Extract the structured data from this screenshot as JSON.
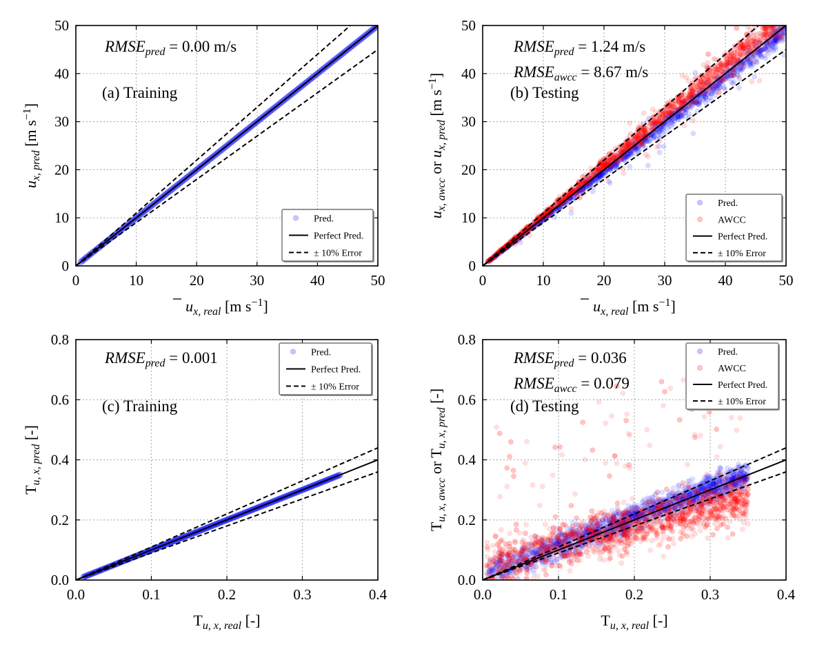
{
  "chart_data": [
    {
      "type": "scatter",
      "panel": "a",
      "annotation": "(a) Training",
      "xlim": [
        0,
        50
      ],
      "ylim": [
        0,
        50
      ],
      "xticks": [
        0,
        10,
        20,
        30,
        40,
        50
      ],
      "yticks": [
        0,
        10,
        20,
        30,
        40,
        50
      ],
      "xlabel": {
        "base": "u",
        "sub": "x, real",
        "unit": " [m s",
        "exp": "−1",
        "close": "]"
      },
      "ylabel": {
        "base": "u",
        "sub": "x, pred",
        "unit": " [m s",
        "exp": "−1",
        "close": "]"
      },
      "rmse": [
        {
          "label": "RMSE",
          "sub": "pred",
          "value": " = 0.00 m/s"
        }
      ],
      "legend": {
        "position": "bottom-right",
        "entries": [
          "Pred.",
          "Perfect Pred.",
          "± 10% Error"
        ]
      },
      "series": [
        {
          "name": "Pred.",
          "color": "#0000ff",
          "alpha": 0.25,
          "x_range": [
            0.8,
            50
          ],
          "relation": "y = x",
          "spread": 0.0,
          "n": 260
        }
      ],
      "reference": {
        "perfect_slope": 1.0,
        "error_slopes": [
          1.1,
          0.9
        ]
      }
    },
    {
      "type": "scatter",
      "panel": "b",
      "annotation": "(b) Testing",
      "xlim": [
        0,
        50
      ],
      "ylim": [
        0,
        50
      ],
      "xticks": [
        0,
        10,
        20,
        30,
        40,
        50
      ],
      "yticks": [
        0,
        10,
        20,
        30,
        40,
        50
      ],
      "xlabel": {
        "base": "u",
        "sub": "x, real",
        "unit": " [m s",
        "exp": "−1",
        "close": "]"
      },
      "ylabel": {
        "pre": "u",
        "pre_sub": "x, awcc",
        "mid": " or ",
        "base": "u",
        "sub": "x, pred",
        "unit": " [m s",
        "exp": "−1",
        "close": "]"
      },
      "rmse": [
        {
          "label": "RMSE",
          "sub": "pred",
          "value": " = 1.24 m/s"
        },
        {
          "label": "RMSE",
          "sub": "awcc",
          "value": " = 8.67 m/s"
        }
      ],
      "legend": {
        "position": "bottom-right",
        "entries": [
          "Pred.",
          "AWCC",
          "Perfect Pred.",
          "± 10% Error"
        ]
      },
      "series": [
        {
          "name": "Pred.",
          "color": "#0000ff",
          "alpha": 0.14,
          "x_range": [
            0.8,
            50
          ],
          "relation": "y ≈ 0.98x",
          "spread": 0.035,
          "n": 1100
        },
        {
          "name": "AWCC",
          "color": "#ff0000",
          "alpha": 0.14,
          "x_range": [
            0.8,
            50
          ],
          "relation": "y ≈ 1.05x",
          "spread": 0.05,
          "n": 1500
        }
      ],
      "reference": {
        "perfect_slope": 1.0,
        "error_slopes": [
          1.1,
          0.9
        ]
      }
    },
    {
      "type": "scatter",
      "panel": "c",
      "annotation": "(c) Training",
      "xlim": [
        0,
        0.4
      ],
      "ylim": [
        0,
        0.8
      ],
      "xticks": [
        0.0,
        0.1,
        0.2,
        0.3,
        0.4
      ],
      "yticks": [
        0.0,
        0.2,
        0.4,
        0.6,
        0.8
      ],
      "xlabel": {
        "base": "T",
        "sub": "u, x, real",
        "unit": " [-]"
      },
      "ylabel": {
        "base": "T",
        "sub": "u, x, pred",
        "unit": " [-]"
      },
      "rmse": [
        {
          "label": "RMSE",
          "sub": "pred",
          "value": " = 0.001"
        }
      ],
      "legend": {
        "position": "top-right",
        "entries": [
          "Pred.",
          "Perfect Pred.",
          "± 10% Error"
        ]
      },
      "series": [
        {
          "name": "Pred.",
          "color": "#0000ff",
          "alpha": 0.25,
          "x_range": [
            0.01,
            0.35
          ],
          "relation": "y = x",
          "spread": 0.0,
          "n": 260
        }
      ],
      "reference": {
        "perfect_slope": 1.0,
        "error_slopes": [
          1.1,
          0.9
        ]
      }
    },
    {
      "type": "scatter",
      "panel": "d",
      "annotation": "(d) Testing",
      "xlim": [
        0,
        0.4
      ],
      "ylim": [
        0,
        0.8
      ],
      "xticks": [
        0.0,
        0.1,
        0.2,
        0.3,
        0.4
      ],
      "yticks": [
        0.0,
        0.2,
        0.4,
        0.6,
        0.8
      ],
      "xlabel": {
        "base": "T",
        "sub": "u, x, real",
        "unit": " [-]"
      },
      "ylabel": {
        "pre": "T",
        "pre_sub": "u, x, awcc",
        "mid": " or ",
        "base": "T",
        "sub": "u, x, pred",
        "unit": " [-]"
      },
      "rmse": [
        {
          "label": "RMSE",
          "sub": "pred",
          "value": " = 0.036"
        },
        {
          "label": "RMSE",
          "sub": "awcc",
          "value": " = 0.079"
        }
      ],
      "legend": {
        "position": "top-right",
        "entries": [
          "Pred.",
          "AWCC",
          "Perfect Pred.",
          "± 10% Error"
        ]
      },
      "series": [
        {
          "name": "Pred.",
          "color": "#0000ff",
          "alpha": 0.12,
          "x_range": [
            0.005,
            0.35
          ],
          "relation": "y ≈ 0.95x + 0.02",
          "spread": 0.04,
          "n": 1600
        },
        {
          "name": "AWCC",
          "color": "#ff0000",
          "alpha": 0.12,
          "x_range": [
            0.005,
            0.35
          ],
          "relation": "y ≈ 0.65x + 0.05",
          "spread": 0.07,
          "n": 1800
        }
      ],
      "reference": {
        "perfect_slope": 1.0,
        "error_slopes": [
          1.1,
          0.9
        ]
      }
    }
  ]
}
